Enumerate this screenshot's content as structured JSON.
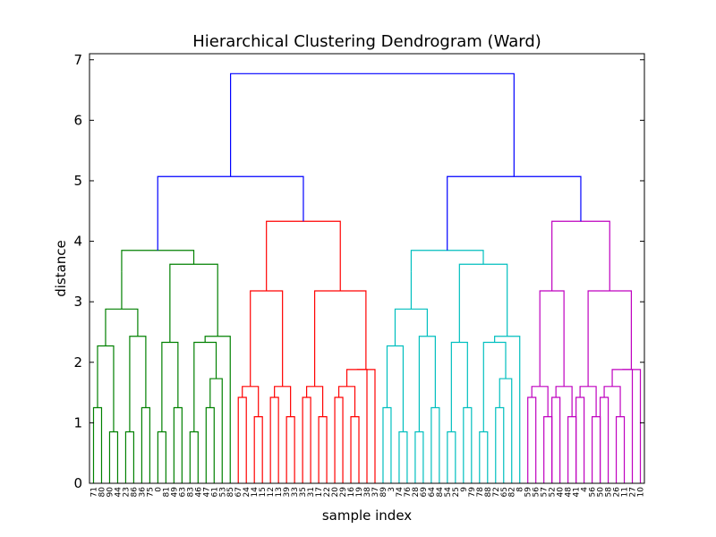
{
  "chart_data": {
    "type": "dendrogram",
    "title": "Hierarchical Clustering Dendrogram (Ward)",
    "xlabel": "sample index",
    "ylabel": "distance",
    "ylim": [
      0,
      7.1
    ],
    "yticks": [
      0,
      1,
      2,
      3,
      4,
      5,
      6,
      7
    ],
    "grid": false,
    "leaf_labels": [
      "71",
      "80",
      "90",
      "44",
      "23",
      "86",
      "36",
      "75",
      "0",
      "81",
      "49",
      "63",
      "83",
      "46",
      "47",
      "61",
      "53",
      "85",
      "67",
      "24",
      "14",
      "15",
      "12",
      "13",
      "39",
      "33",
      "35",
      "31",
      "17",
      "22",
      "20",
      "29",
      "16",
      "19",
      "38",
      "37",
      "89",
      "3",
      "74",
      "76",
      "28",
      "69",
      "64",
      "84",
      "54",
      "25",
      "9",
      "79",
      "78",
      "88",
      "72",
      "65",
      "82",
      "8",
      "59",
      "56",
      "57",
      "52",
      "40",
      "48",
      "41",
      "4",
      "56",
      "50",
      "58",
      "26",
      "11",
      "27",
      "10"
    ],
    "colors": {
      "root": "#0000ff",
      "clusters": [
        "#008000",
        "#ff0000",
        "#00bfbf",
        "#bf00bf"
      ]
    },
    "merge_heights": {
      "root": 6.77,
      "left_half": 5.07,
      "right_half": 5.07,
      "cluster_green": 3.85,
      "cluster_red": 4.33,
      "cluster_cyan": 3.85,
      "cluster_magenta": 4.33
    }
  }
}
